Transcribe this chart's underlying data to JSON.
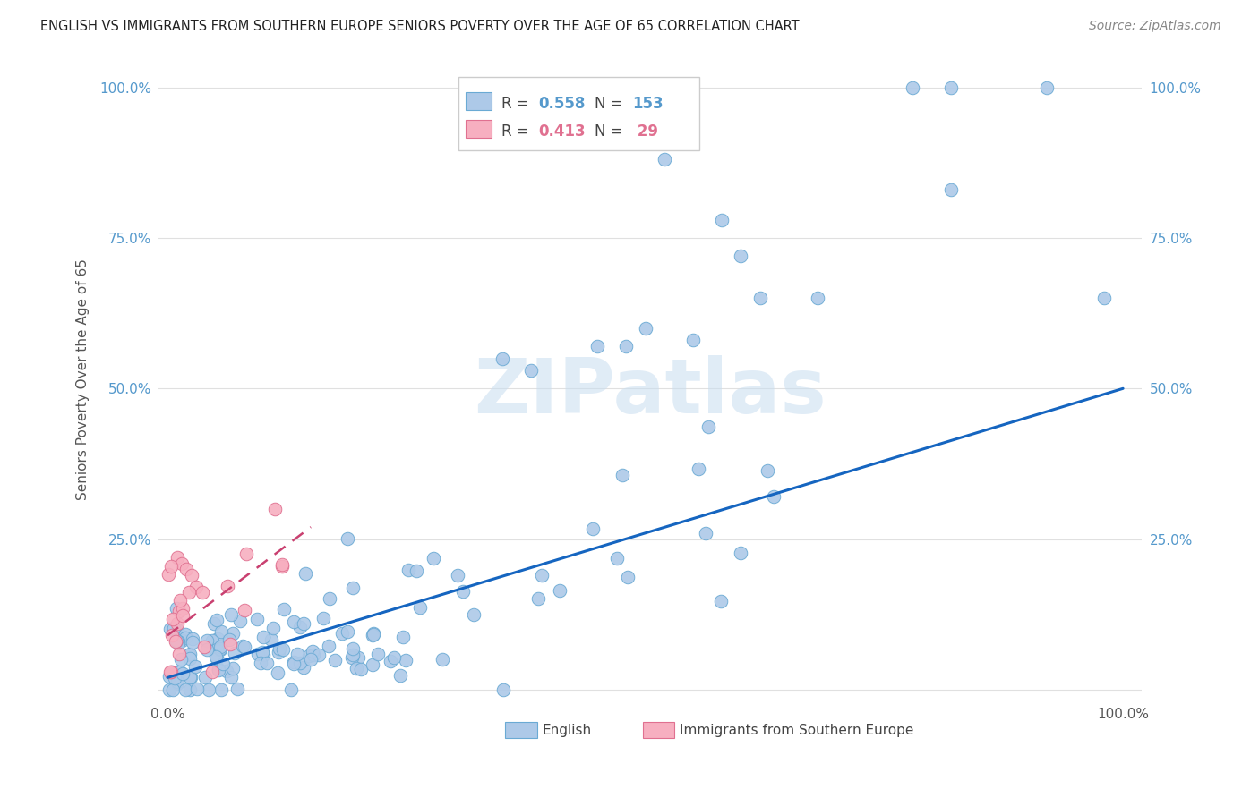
{
  "title": "ENGLISH VS IMMIGRANTS FROM SOUTHERN EUROPE SENIORS POVERTY OVER THE AGE OF 65 CORRELATION CHART",
  "source": "Source: ZipAtlas.com",
  "ylabel": "Seniors Poverty Over the Age of 65",
  "watermark": "ZIPatlas",
  "english_R": "0.558",
  "english_N": "153",
  "immigrant_R": "0.413",
  "immigrant_N": "29",
  "english_color": "#adc9e8",
  "english_edge": "#6aaad4",
  "immigrant_color": "#f7afc0",
  "immigrant_edge": "#e07090",
  "regression_english_color": "#1565c0",
  "regression_immigrant_color": "#c94070",
  "background_color": "#ffffff",
  "grid_color": "#e0e0e0",
  "title_color": "#222222",
  "source_color": "#888888",
  "tick_color": "#5599cc",
  "label_color": "#555555",
  "legend_edge_color": "#cccccc",
  "watermark_color": "#c8ddf0"
}
